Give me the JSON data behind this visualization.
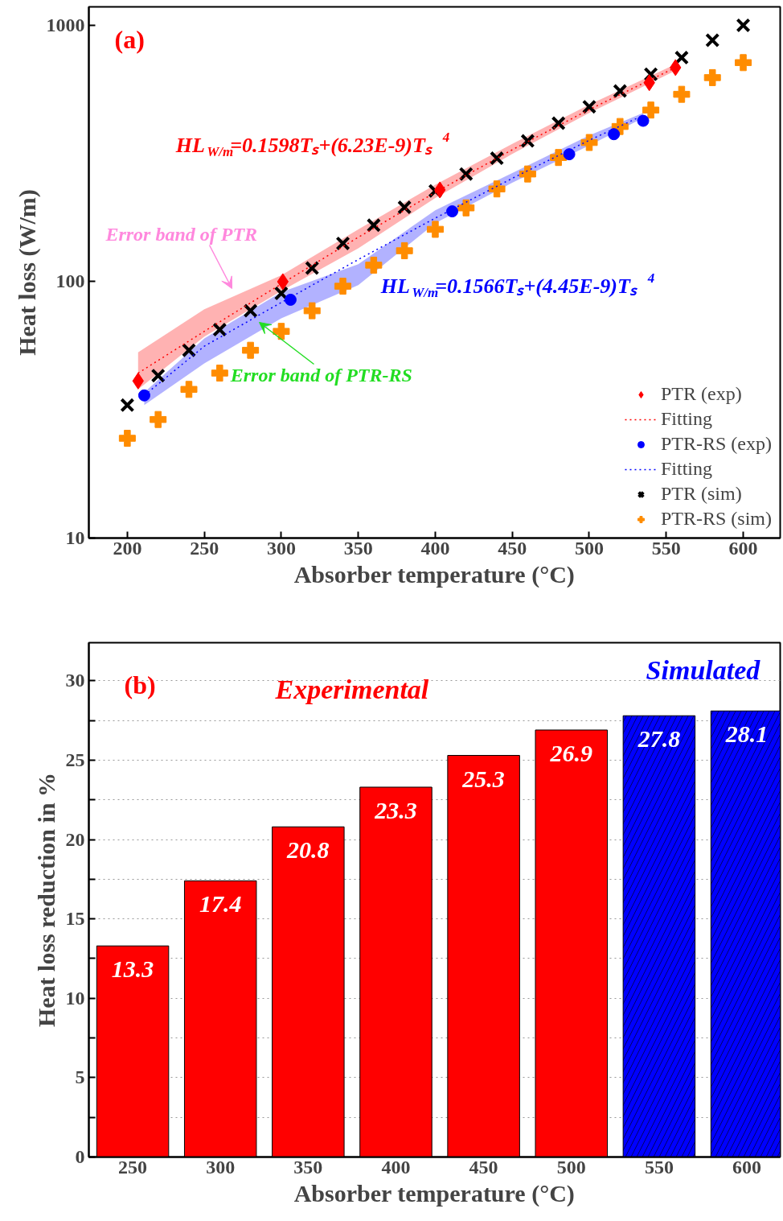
{
  "chart_data": [
    {
      "type": "scatter",
      "xlabel": "Absorber temperature (°C)",
      "ylabel": "Heat loss (W/m)",
      "log": "y",
      "xlim": [
        175,
        624
      ],
      "ylim": [
        10,
        1180
      ],
      "xticks": [
        200,
        250,
        300,
        350,
        400,
        450,
        500,
        550,
        600
      ],
      "yticks": [
        10,
        100,
        1000
      ],
      "legend": "bottom right",
      "annotations": [
        "(a)",
        "HL$_{W/m}$=0.1598Tₛ+(6.23E-9)Tₛ$^{4}$",
        "HL$_{W/m}$=0.1566Tₛ+(4.45E-9)Tₛ$^{4}$",
        "Error band of PTR",
        "Error band of PTR-RS"
      ],
      "series": [
        {
          "name": "PTR (exp)",
          "color": "#ff0000",
          "marker": "diamond",
          "x": [
            207,
            301,
            403,
            539,
            556
          ],
          "values": [
            41,
            100,
            228,
            597,
            684
          ]
        },
        {
          "name": "Fitting",
          "type": "line",
          "line_style": "dotted",
          "marker": "none",
          "color": "#ff0000",
          "x": [
            207,
            250,
            300,
            350,
            400,
            450,
            500,
            556
          ],
          "values": [
            44,
            64,
            98,
            149,
            223,
            327,
            469,
            684
          ],
          "lower": [
            38,
            61,
            92,
            135,
            212,
            315,
            455,
            665
          ],
          "upper": [
            53,
            78,
            106,
            160,
            239,
            345,
            490,
            705
          ]
        },
        {
          "name": "PTR-RS (exp)",
          "color": "#0000ff",
          "marker": "circle",
          "x": [
            211,
            306,
            411,
            487,
            516,
            535
          ],
          "values": [
            36,
            85,
            188,
            314,
            376,
            424
          ]
        },
        {
          "name": "Fitting",
          "type": "line",
          "line_style": "dotted",
          "marker": "none",
          "color": "#0000ff",
          "x": [
            211,
            250,
            300,
            350,
            400,
            450,
            500,
            535
          ],
          "values": [
            36,
            56,
            83,
            122,
            177,
            253,
            356,
            445
          ],
          "lower": [
            33,
            48,
            72,
            97,
            169,
            243,
            340,
            435
          ],
          "upper": [
            37,
            60,
            91,
            117,
            190,
            265,
            372,
            455
          ]
        },
        {
          "name": "PTR (sim)",
          "color": "#000000",
          "marker": "x",
          "x": [
            200,
            220,
            240,
            260,
            280,
            300,
            320,
            340,
            360,
            380,
            400,
            420,
            440,
            460,
            480,
            500,
            520,
            540,
            560,
            580,
            600
          ],
          "values": [
            33,
            43,
            54,
            65,
            77,
            90,
            113,
            141,
            166,
            195,
            226,
            263,
            303,
            354,
            415,
            481,
            554,
            644,
            748,
            874,
            1000
          ]
        },
        {
          "name": "PTR-RS (sim)",
          "color": "#ff8c00",
          "marker": "cross",
          "x": [
            200,
            220,
            240,
            260,
            280,
            300,
            320,
            340,
            360,
            380,
            400,
            420,
            440,
            460,
            480,
            500,
            520,
            540,
            560,
            580,
            600
          ],
          "values": [
            24.5,
            29,
            38,
            44,
            54,
            64,
            77,
            96,
            116,
            132,
            160,
            194,
            230,
            263,
            305,
            349,
            403,
            467,
            538,
            625,
            715
          ]
        }
      ]
    },
    {
      "type": "bar",
      "xlabel": "Absorber temperature (°C)",
      "ylabel": "Heat loss reduction in %",
      "categories": [
        "250",
        "300",
        "350",
        "400",
        "450",
        "500",
        "550",
        "600"
      ],
      "ylim": [
        0,
        32.4
      ],
      "yticks": [
        0,
        {
          "value": 2.5,
          "label": null
        },
        5,
        {
          "value": 7.5,
          "label": null
        },
        10,
        {
          "value": 12.5,
          "label": null
        },
        15,
        {
          "value": 17.5,
          "label": null
        },
        20,
        {
          "value": 22.5,
          "label": null
        },
        25,
        {
          "value": 27.5,
          "label": null
        },
        30
      ],
      "grid": "y",
      "data_labels": true,
      "annotations": [
        "(b)"
      ],
      "series": [
        {
          "name": "Experimental",
          "color": "#ff0000",
          "values": [
            13.3,
            17.4,
            20.8,
            23.3,
            25.3,
            26.9,
            null,
            null
          ]
        },
        {
          "name": "Simulated",
          "color": "#0000ff",
          "values": [
            null,
            null,
            null,
            null,
            null,
            null,
            27.8,
            28.1
          ]
        }
      ]
    }
  ]
}
